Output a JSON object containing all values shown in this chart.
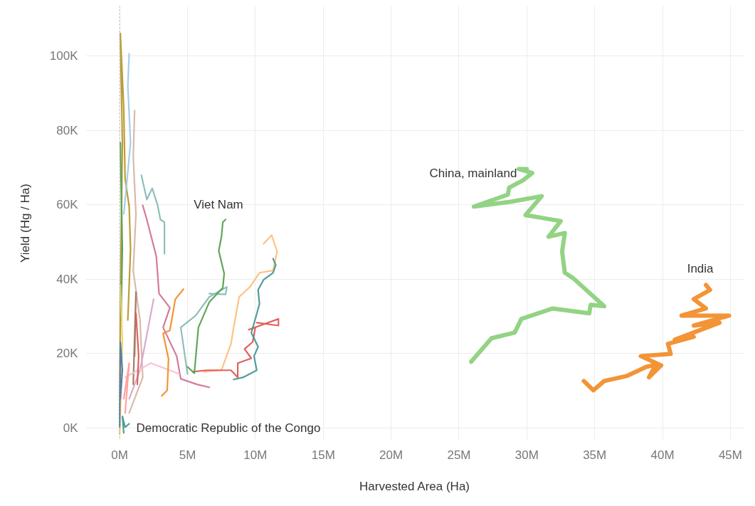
{
  "chart_data": {
    "type": "line",
    "xlabel": "Harvested Area (Ha)",
    "ylabel": "Yield (Hg / Ha)",
    "xlim": [
      -2.5,
      46
    ],
    "ylim": [
      -3.3,
      113.4
    ],
    "xticks": [
      {
        "value": 0,
        "label": "0M"
      },
      {
        "value": 5,
        "label": "5M"
      },
      {
        "value": 10,
        "label": "10M"
      },
      {
        "value": 15,
        "label": "15M"
      },
      {
        "value": 20,
        "label": "20M"
      },
      {
        "value": 25,
        "label": "25M"
      },
      {
        "value": 30,
        "label": "30M"
      },
      {
        "value": 35,
        "label": "35M"
      },
      {
        "value": 40,
        "label": "40M"
      },
      {
        "value": 45,
        "label": "45M"
      }
    ],
    "yticks": [
      {
        "value": 0,
        "label": "0K"
      },
      {
        "value": 20,
        "label": "20K"
      },
      {
        "value": 40,
        "label": "40K"
      },
      {
        "value": 60,
        "label": "60K"
      },
      {
        "value": 80,
        "label": "80K"
      },
      {
        "value": 100,
        "label": "100K"
      }
    ],
    "grid": true,
    "marker": "none",
    "line_style": "solid",
    "ref_lines": [
      {
        "axis": "x",
        "value": 0,
        "color": "#aaaaaa",
        "line_style": "dotted"
      }
    ],
    "series": [
      {
        "color": "#b6992d",
        "x": [
          0,
          0.05,
          0.2,
          0.05,
          0.3,
          0.4,
          0.7,
          0.8,
          0.6
        ],
        "values": [
          2,
          32.7,
          76.7,
          106,
          86,
          67,
          59.5,
          48,
          29
        ]
      },
      {
        "color": "#a0cbe8",
        "x": [
          0.7,
          0.6,
          0.8,
          0.5,
          0.3
        ],
        "values": [
          100.6,
          92,
          76.7,
          65,
          57.5
        ]
      },
      {
        "color": "#d7b5a6",
        "x": [
          1.1,
          1.0,
          1.2,
          1.0,
          1.5,
          1.7,
          0.7
        ],
        "values": [
          85.3,
          72.8,
          57.5,
          42.3,
          28.9,
          13.6,
          4.0
        ]
      },
      {
        "color": "#59a14f",
        "x": [
          0.05,
          0.2,
          0.1
        ],
        "values": [
          76.7,
          48,
          28.9
        ]
      },
      {
        "color": "#86bcb6",
        "x": [
          1.6,
          2.0,
          2.4,
          2.8,
          3.0,
          3.3,
          3.3
        ],
        "values": [
          67.9,
          61.4,
          64.4,
          59.8,
          56.0,
          55.3,
          46.8
        ]
      },
      {
        "color": "#d37295",
        "x": [
          1.7,
          2.0,
          2.7,
          2.9,
          3.7,
          3.2,
          4.2,
          4.5,
          5.7,
          6.6
        ],
        "values": [
          59.8,
          56.0,
          46.1,
          36.1,
          32.3,
          27.0,
          19.3,
          13.2,
          11.7,
          10.9
        ]
      },
      {
        "color": "#f1ce63",
        "x": [
          0,
          0.2,
          0.05
        ],
        "values": [
          -1.7,
          23.1,
          38.4
        ]
      },
      {
        "color": "#9d7660",
        "x": [
          1.1,
          1.2,
          1.0
        ],
        "values": [
          19.3,
          36.5,
          11.7
        ]
      },
      {
        "color": "#4e79a7",
        "x": [
          0,
          0.05,
          0.2,
          0.05
        ],
        "values": [
          0.2,
          23.1,
          15.5,
          7.8
        ]
      },
      {
        "color": "#d4a6c8",
        "x": [
          2.5,
          2.0,
          1.5,
          0.7
        ],
        "values": [
          34.6,
          25.0,
          15.5,
          7.8
        ]
      },
      {
        "color": "#fabfd2",
        "x": [
          0.4,
          2.3,
          4.4
        ],
        "values": [
          13.6,
          17.4,
          14.5
        ]
      },
      {
        "color": "#ff9d9a",
        "x": [
          0.3,
          0.7,
          0.4
        ],
        "values": [
          7.8,
          17.4,
          4.0
        ]
      },
      {
        "color": "#e15759",
        "x": [
          1.2,
          1.4,
          1.3
        ],
        "values": [
          30.8,
          19.3,
          11.7
        ]
      },
      {
        "color": "#f28e2b",
        "x": [
          4.7,
          4.1,
          3.7,
          3.2,
          3.6,
          3.5,
          3.1
        ],
        "values": [
          37.3,
          34.6,
          26.2,
          25.4,
          18.5,
          10.1,
          8.6
        ]
      },
      {
        "color": "#86bcb6",
        "x": [
          5.0,
          4.5,
          5.6,
          6.6,
          7.9,
          7.8,
          6.6
        ],
        "values": [
          14.5,
          27.0,
          30.2,
          35.2,
          37.9,
          35.9,
          36.1
        ]
      },
      {
        "color": "#ffbe7d",
        "x": [
          6.2,
          7.5,
          8.2,
          8.4,
          8.8,
          9.6,
          10.3,
          11.3,
          11.6,
          11.2,
          10.6
        ],
        "values": [
          15.1,
          15.5,
          22.6,
          27.0,
          35.2,
          37.9,
          41.7,
          42.3,
          47.4,
          51.8,
          49.5
        ]
      },
      {
        "color": "#e15759",
        "x": [
          5.4,
          6.4,
          8.2,
          8.7,
          8.7,
          9.7,
          9.2,
          9.8,
          10.0,
          9.5,
          11.7,
          11.7,
          10.1
        ],
        "values": [
          15.1,
          15.5,
          15.5,
          13.6,
          17.4,
          18.7,
          21.2,
          23.1,
          27.0,
          26.4,
          29.3,
          27.5,
          28.3
        ]
      },
      {
        "color": "#499894",
        "x": [
          8.4,
          9.1,
          10.1,
          9.9,
          10.2,
          9.7,
          10.0,
          10.3,
          10.2,
          10.6,
          11.3,
          11.5,
          11.3
        ],
        "values": [
          13.0,
          13.6,
          15.5,
          19.3,
          21.8,
          25.6,
          29.4,
          33.3,
          37.1,
          39.8,
          41.7,
          43.8,
          45.5
        ]
      },
      {
        "name": "Viet Nam",
        "color": "#59a14f",
        "x": [
          5.0,
          5.5,
          5.8,
          6.6,
          7.6,
          7.7,
          7.3,
          7.5,
          7.6,
          7.8
        ],
        "values": [
          16.4,
          14.7,
          27.0,
          33.8,
          37.7,
          41.5,
          47.6,
          51.4,
          55.3,
          56.0
        ]
      },
      {
        "name": "Democratic Republic of the Congo",
        "color": "#499894",
        "x": [
          0.3,
          0.2,
          0.4,
          0.7
        ],
        "values": [
          -1.3,
          3.1,
          0.2,
          1.1
        ]
      },
      {
        "name": "China, mainland",
        "color": "#8cd17d",
        "x": [
          25.9,
          27.4,
          29.1,
          29.6,
          31.9,
          34.6,
          34.7,
          35.7,
          33.4,
          32.8,
          32.6,
          32.8,
          31.6,
          32.5,
          29.9,
          31.1,
          28.8,
          26.1,
          28.6,
          28.7,
          29.7,
          30.4,
          29.4,
          30.0
        ],
        "values": [
          17.8,
          24.1,
          25.6,
          29.3,
          32.1,
          30.8,
          33.1,
          32.7,
          40.3,
          41.7,
          47.4,
          52.4,
          51.4,
          55.6,
          57.2,
          62.3,
          60.8,
          59.5,
          62.7,
          64.6,
          66.5,
          68.5,
          69.6,
          69.6
        ]
      },
      {
        "name": "India",
        "color": "#f28e2b",
        "x": [
          34.2,
          34.9,
          35.7,
          37.4,
          38.8,
          39.5,
          39.0,
          39.9,
          38.4,
          40.6,
          40.4,
          42.3,
          40.9,
          44.2,
          42.3,
          44.9,
          41.4,
          43.2,
          42.3,
          43.5,
          43.2
        ],
        "values": [
          12.6,
          10.1,
          12.6,
          14.0,
          16.4,
          17.0,
          13.6,
          16.8,
          19.3,
          19.9,
          22.6,
          24.5,
          23.7,
          28.3,
          27.5,
          30.2,
          30.2,
          32.1,
          34.6,
          37.1,
          38.4
        ]
      }
    ]
  }
}
